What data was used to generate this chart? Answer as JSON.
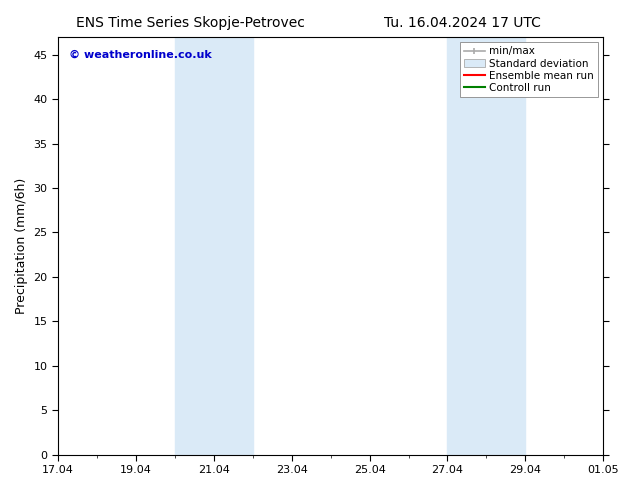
{
  "title_left": "ENS Time Series Skopje-Petrovec",
  "title_right": "Tu. 16.04.2024 17 UTC",
  "ylabel": "Precipitation (mm/6h)",
  "watermark": "© weatheronline.co.uk",
  "watermark_color": "#0000cc",
  "background_color": "#ffffff",
  "plot_bg_color": "#ffffff",
  "y_min": 0,
  "y_max": 47,
  "x_ticks_pos": [
    0,
    2,
    4,
    6,
    8,
    10,
    12,
    14
  ],
  "x_tick_labels": [
    "17.04",
    "19.04",
    "21.04",
    "23.04",
    "25.04",
    "27.04",
    "29.04",
    "01.05"
  ],
  "y_ticks": [
    0,
    5,
    10,
    15,
    20,
    25,
    30,
    35,
    40,
    45
  ],
  "shaded_regions": [
    {
      "x_start": 3,
      "x_end": 5,
      "color": "#daeaf7"
    },
    {
      "x_start": 10,
      "x_end": 12,
      "color": "#daeaf7"
    }
  ],
  "legend_entries": [
    {
      "label": "min/max",
      "color": "#aaaaaa",
      "type": "errorbar"
    },
    {
      "label": "Standard deviation",
      "color": "#daeaf7",
      "type": "fill"
    },
    {
      "label": "Ensemble mean run",
      "color": "#ff0000",
      "type": "line"
    },
    {
      "label": "Controll run",
      "color": "#008000",
      "type": "line"
    }
  ],
  "title_fontsize": 10,
  "tick_fontsize": 8,
  "label_fontsize": 9,
  "legend_fontsize": 7.5,
  "x_min": 0,
  "x_max": 14
}
